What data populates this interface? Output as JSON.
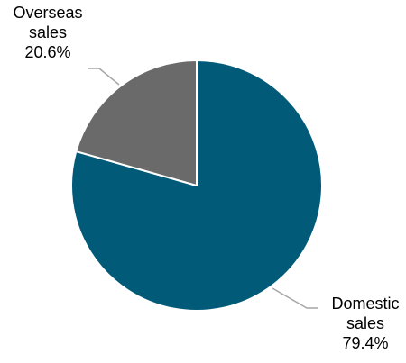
{
  "chart_data": {
    "type": "pie",
    "title": "",
    "start_angle_deg": 0,
    "direction": "clockwise",
    "slices": [
      {
        "name": "Domestic sales",
        "label_lines": [
          "Domestic",
          "sales"
        ],
        "value": 79.4,
        "value_label": "79.4%",
        "color": "#005a78"
      },
      {
        "name": "Overseas sales",
        "label_lines": [
          "Overseas",
          "sales"
        ],
        "value": 20.6,
        "value_label": "20.6%",
        "color": "#6a6a6a"
      }
    ],
    "slice_border_color": "#ffffff",
    "leader_line_color": "#a6a6a6",
    "label_color": "#000000",
    "legend": "none"
  }
}
